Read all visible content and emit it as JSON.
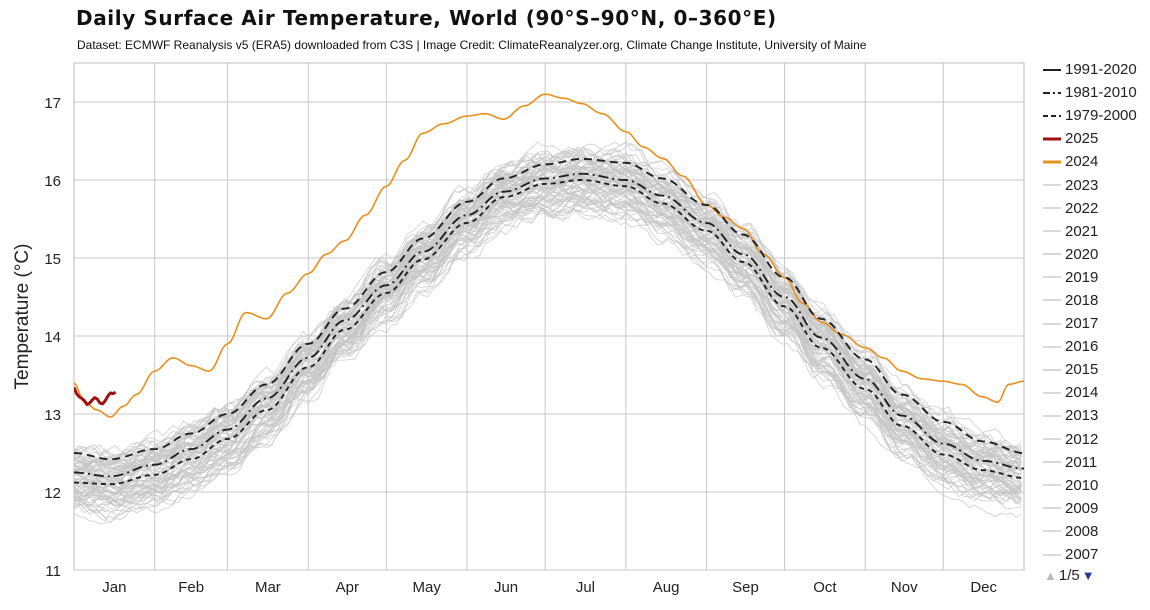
{
  "header": {
    "title": "Daily Surface Air Temperature, World (90°S–90°N, 0–360°E)",
    "subtitle": "Dataset: ECMWF Reanalysis v5 (ERA5) downloaded from C3S | Image Credit: ClimateReanalyzer.org, Climate Change Institute, University of Maine"
  },
  "legend": {
    "items": [
      {
        "label": "1991-2020",
        "color": "#222222",
        "dash": "solid"
      },
      {
        "label": "1981-2010",
        "color": "#222222",
        "dash": "dashdot"
      },
      {
        "label": "1979-2000",
        "color": "#222222",
        "dash": "dash"
      },
      {
        "label": "2025",
        "color": "#a01010",
        "dash": "solid"
      },
      {
        "label": "2024",
        "color": "#e8901c",
        "dash": "solid"
      },
      {
        "label": "2023",
        "color": "#d9d9d9",
        "dash": "solid"
      },
      {
        "label": "2022",
        "color": "#d9d9d9",
        "dash": "solid"
      },
      {
        "label": "2021",
        "color": "#d9d9d9",
        "dash": "solid"
      },
      {
        "label": "2020",
        "color": "#d9d9d9",
        "dash": "solid"
      },
      {
        "label": "2019",
        "color": "#d9d9d9",
        "dash": "solid"
      },
      {
        "label": "2018",
        "color": "#d9d9d9",
        "dash": "solid"
      },
      {
        "label": "2017",
        "color": "#d9d9d9",
        "dash": "solid"
      },
      {
        "label": "2016",
        "color": "#d9d9d9",
        "dash": "solid"
      },
      {
        "label": "2015",
        "color": "#d9d9d9",
        "dash": "solid"
      },
      {
        "label": "2014",
        "color": "#d9d9d9",
        "dash": "solid"
      },
      {
        "label": "2013",
        "color": "#d9d9d9",
        "dash": "solid"
      },
      {
        "label": "2012",
        "color": "#d9d9d9",
        "dash": "solid"
      },
      {
        "label": "2011",
        "color": "#d9d9d9",
        "dash": "solid"
      },
      {
        "label": "2010",
        "color": "#d9d9d9",
        "dash": "solid"
      },
      {
        "label": "2009",
        "color": "#d9d9d9",
        "dash": "solid"
      },
      {
        "label": "2008",
        "color": "#d9d9d9",
        "dash": "solid"
      },
      {
        "label": "2007",
        "color": "#d9d9d9",
        "dash": "solid"
      }
    ],
    "page_indicator": "1/5",
    "nav_up_icon": "triangle-up-icon",
    "nav_down_icon": "triangle-down-icon"
  },
  "chart_data": {
    "type": "line",
    "title": "Daily Surface Air Temperature, World (90°S–90°N, 0–360°E)",
    "subtitle": "Dataset: ECMWF Reanalysis v5 (ERA5) downloaded from C3S | Image Credit: ClimateReanalyzer.org, Climate Change Institute, University of Maine",
    "ylabel": "Temperature (°C)",
    "xlabel": "",
    "ylim": [
      11,
      17.5
    ],
    "xlim": [
      1,
      366
    ],
    "x_unit": "day of year",
    "yticks": [
      11,
      12,
      13,
      14,
      15,
      16,
      17
    ],
    "month_labels": [
      "Jan",
      "Feb",
      "Mar",
      "Apr",
      "May",
      "Jun",
      "Jul",
      "Aug",
      "Sep",
      "Oct",
      "Nov",
      "Dec"
    ],
    "month_start_days": [
      1,
      32,
      60,
      91,
      121,
      152,
      182,
      213,
      244,
      274,
      305,
      335
    ],
    "grid": true,
    "legend_position": "right",
    "series": [
      {
        "name": "1991-2020",
        "color": "#222222",
        "dash": "8,5",
        "x": [
          1,
          15,
          32,
          46,
          60,
          75,
          91,
          105,
          121,
          135,
          152,
          166,
          182,
          196,
          213,
          227,
          244,
          258,
          274,
          288,
          305,
          319,
          335,
          350,
          366
        ],
        "y": [
          12.5,
          12.42,
          12.55,
          12.75,
          13.0,
          13.38,
          13.9,
          14.35,
          14.82,
          15.25,
          15.72,
          16.02,
          16.2,
          16.27,
          16.22,
          16.02,
          15.68,
          15.3,
          14.75,
          14.22,
          13.7,
          13.25,
          12.9,
          12.65,
          12.5
        ]
      },
      {
        "name": "1981-2010",
        "color": "#222222",
        "dash": "10,4,2,4",
        "x": [
          1,
          15,
          32,
          46,
          60,
          75,
          91,
          105,
          121,
          135,
          152,
          166,
          182,
          196,
          213,
          227,
          244,
          258,
          274,
          288,
          305,
          319,
          335,
          350,
          366
        ],
        "y": [
          12.25,
          12.2,
          12.35,
          12.55,
          12.8,
          13.2,
          13.72,
          14.2,
          14.65,
          15.08,
          15.55,
          15.85,
          16.02,
          16.08,
          16.0,
          15.8,
          15.45,
          15.05,
          14.5,
          13.98,
          13.45,
          12.98,
          12.62,
          12.4,
          12.3
        ]
      },
      {
        "name": "1979-2000",
        "color": "#222222",
        "dash": "5,4",
        "x": [
          1,
          15,
          32,
          46,
          60,
          75,
          91,
          105,
          121,
          135,
          152,
          166,
          182,
          196,
          213,
          227,
          244,
          258,
          274,
          288,
          305,
          319,
          335,
          350,
          366
        ],
        "y": [
          12.12,
          12.1,
          12.22,
          12.42,
          12.68,
          13.05,
          13.6,
          14.08,
          14.55,
          14.98,
          15.45,
          15.78,
          15.95,
          16.0,
          15.92,
          15.7,
          15.35,
          14.95,
          14.38,
          13.85,
          13.32,
          12.85,
          12.48,
          12.28,
          12.18
        ]
      },
      {
        "name": "2025",
        "color": "#a01010",
        "dash": "",
        "x": [
          1,
          2,
          3,
          4,
          5,
          6,
          7,
          8,
          9,
          10,
          11,
          12,
          13,
          14,
          15,
          16,
          17
        ],
        "y": [
          13.34,
          13.26,
          13.22,
          13.2,
          13.17,
          13.12,
          13.14,
          13.18,
          13.21,
          13.19,
          13.14,
          13.13,
          13.17,
          13.23,
          13.27,
          13.26,
          13.28
        ]
      },
      {
        "name": "2024",
        "color": "#e8901c",
        "dash": "",
        "x": [
          1,
          5,
          10,
          15,
          20,
          25,
          32,
          39,
          46,
          53,
          60,
          67,
          75,
          83,
          91,
          98,
          105,
          113,
          121,
          128,
          135,
          143,
          152,
          159,
          166,
          174,
          182,
          189,
          196,
          204,
          213,
          220,
          227,
          235,
          244,
          251,
          258,
          266,
          274,
          281,
          288,
          296,
          305,
          312,
          319,
          327,
          335,
          342,
          350,
          356,
          360,
          366
        ],
        "y": [
          13.4,
          13.15,
          13.05,
          12.96,
          13.1,
          13.25,
          13.55,
          13.72,
          13.62,
          13.55,
          13.9,
          14.3,
          14.22,
          14.55,
          14.8,
          15.05,
          15.22,
          15.55,
          15.92,
          16.25,
          16.6,
          16.72,
          16.82,
          16.85,
          16.78,
          16.95,
          17.1,
          17.05,
          16.98,
          16.85,
          16.62,
          16.42,
          16.28,
          16.05,
          15.68,
          15.52,
          15.38,
          15.05,
          14.75,
          14.42,
          14.18,
          14.02,
          13.85,
          13.72,
          13.55,
          13.45,
          13.42,
          13.38,
          13.22,
          13.15,
          13.38,
          13.42
        ]
      }
    ],
    "background_years": [
      "2023",
      "2022",
      "2021",
      "2020",
      "2019",
      "2018",
      "2017",
      "2016",
      "2015",
      "2014",
      "2013",
      "2012",
      "2011",
      "2010",
      "2009",
      "2008",
      "2007"
    ]
  }
}
